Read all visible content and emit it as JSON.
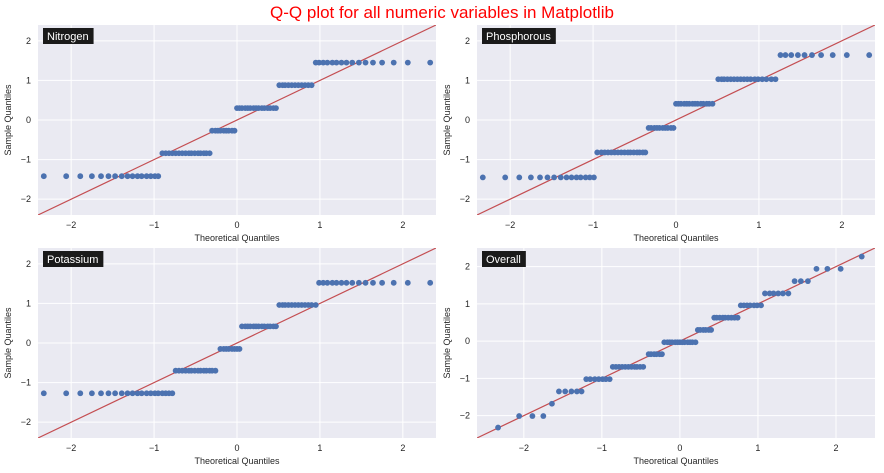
{
  "figure": {
    "title": "Q-Q plot for all numeric variables in Matplotlib",
    "title_color": "#ff0000",
    "background": "#ffffff",
    "axes_facecolor": "#eaeaf2",
    "grid_color": "#ffffff",
    "point_color": "#4c72b0",
    "line_color": "#c44e52",
    "label_box_color": "#1a1a1a",
    "label_text_color": "#ffffff"
  },
  "chart_data": [
    {
      "type": "scatter",
      "title": "Nitrogen",
      "xlabel": "Theoretical Quantiles",
      "ylabel": "Sample Quantiles",
      "xlim": [
        -2.4,
        2.4
      ],
      "ylim": [
        -2.4,
        2.4
      ],
      "xticks": [
        -2,
        -1,
        0,
        1,
        2
      ],
      "yticks": [
        -2,
        -1,
        0,
        1,
        2
      ],
      "grid": true,
      "reference_line": "45-degree",
      "points": [
        [
          -2.33,
          -1.42
        ],
        [
          -2.06,
          -1.42
        ],
        [
          -1.89,
          -1.42
        ],
        [
          -1.75,
          -1.42
        ],
        [
          -1.64,
          -1.42
        ],
        [
          -1.55,
          -1.42
        ],
        [
          -1.47,
          -1.42
        ],
        [
          -1.39,
          -1.42
        ],
        [
          -1.32,
          -1.42
        ],
        [
          -1.26,
          -1.42
        ],
        [
          -1.2,
          -1.42
        ],
        [
          -1.15,
          -1.42
        ],
        [
          -1.09,
          -1.42
        ],
        [
          -1.04,
          -1.42
        ],
        [
          -0.99,
          -1.42
        ],
        [
          -0.95,
          -1.42
        ],
        [
          -0.9,
          -0.84
        ],
        [
          -0.86,
          -0.84
        ],
        [
          -0.82,
          -0.84
        ],
        [
          -0.78,
          -0.84
        ],
        [
          -0.74,
          -0.84
        ],
        [
          -0.7,
          -0.84
        ],
        [
          -0.66,
          -0.84
        ],
        [
          -0.62,
          -0.84
        ],
        [
          -0.58,
          -0.84
        ],
        [
          -0.55,
          -0.84
        ],
        [
          -0.51,
          -0.84
        ],
        [
          -0.47,
          -0.84
        ],
        [
          -0.44,
          -0.84
        ],
        [
          -0.4,
          -0.84
        ],
        [
          -0.37,
          -0.84
        ],
        [
          -0.33,
          -0.84
        ],
        [
          -0.3,
          -0.27
        ],
        [
          -0.26,
          -0.27
        ],
        [
          -0.23,
          -0.27
        ],
        [
          -0.2,
          -0.27
        ],
        [
          -0.16,
          -0.27
        ],
        [
          -0.13,
          -0.27
        ],
        [
          -0.1,
          -0.27
        ],
        [
          -0.06,
          -0.27
        ],
        [
          -0.03,
          -0.27
        ],
        [
          0,
          0.3
        ],
        [
          0.03,
          0.3
        ],
        [
          0.06,
          0.3
        ],
        [
          0.1,
          0.3
        ],
        [
          0.13,
          0.3
        ],
        [
          0.16,
          0.3
        ],
        [
          0.2,
          0.3
        ],
        [
          0.23,
          0.3
        ],
        [
          0.26,
          0.3
        ],
        [
          0.3,
          0.3
        ],
        [
          0.33,
          0.3
        ],
        [
          0.37,
          0.3
        ],
        [
          0.4,
          0.3
        ],
        [
          0.44,
          0.3
        ],
        [
          0.47,
          0.3
        ],
        [
          0.51,
          0.88
        ],
        [
          0.55,
          0.88
        ],
        [
          0.58,
          0.88
        ],
        [
          0.62,
          0.88
        ],
        [
          0.66,
          0.88
        ],
        [
          0.7,
          0.88
        ],
        [
          0.74,
          0.88
        ],
        [
          0.78,
          0.88
        ],
        [
          0.82,
          0.88
        ],
        [
          0.86,
          0.88
        ],
        [
          0.9,
          0.88
        ],
        [
          0.95,
          1.45
        ],
        [
          0.99,
          1.45
        ],
        [
          1.04,
          1.45
        ],
        [
          1.09,
          1.45
        ],
        [
          1.15,
          1.45
        ],
        [
          1.2,
          1.45
        ],
        [
          1.26,
          1.45
        ],
        [
          1.32,
          1.45
        ],
        [
          1.39,
          1.45
        ],
        [
          1.47,
          1.45
        ],
        [
          1.55,
          1.45
        ],
        [
          1.64,
          1.45
        ],
        [
          1.75,
          1.45
        ],
        [
          1.89,
          1.45
        ],
        [
          2.06,
          1.45
        ],
        [
          2.33,
          1.45
        ]
      ]
    },
    {
      "type": "scatter",
      "title": "Phosphorous",
      "xlabel": "Theoretical Quantiles",
      "ylabel": "Sample Quantiles",
      "xlim": [
        -2.4,
        2.4
      ],
      "ylim": [
        -2.4,
        2.4
      ],
      "xticks": [
        -2,
        -1,
        0,
        1,
        2
      ],
      "yticks": [
        -2,
        -1,
        0,
        1,
        2
      ],
      "grid": true,
      "reference_line": "45-degree",
      "points": [
        [
          -2.33,
          -1.45
        ],
        [
          -2.06,
          -1.45
        ],
        [
          -1.89,
          -1.45
        ],
        [
          -1.75,
          -1.45
        ],
        [
          -1.64,
          -1.45
        ],
        [
          -1.55,
          -1.45
        ],
        [
          -1.47,
          -1.45
        ],
        [
          -1.39,
          -1.45
        ],
        [
          -1.32,
          -1.45
        ],
        [
          -1.26,
          -1.45
        ],
        [
          -1.2,
          -1.45
        ],
        [
          -1.15,
          -1.45
        ],
        [
          -1.09,
          -1.45
        ],
        [
          -1.04,
          -1.45
        ],
        [
          -0.99,
          -1.45
        ],
        [
          -0.95,
          -0.82
        ],
        [
          -0.9,
          -0.82
        ],
        [
          -0.86,
          -0.82
        ],
        [
          -0.82,
          -0.82
        ],
        [
          -0.78,
          -0.82
        ],
        [
          -0.74,
          -0.82
        ],
        [
          -0.7,
          -0.82
        ],
        [
          -0.66,
          -0.82
        ],
        [
          -0.62,
          -0.82
        ],
        [
          -0.58,
          -0.82
        ],
        [
          -0.55,
          -0.82
        ],
        [
          -0.51,
          -0.82
        ],
        [
          -0.47,
          -0.82
        ],
        [
          -0.44,
          -0.82
        ],
        [
          -0.4,
          -0.82
        ],
        [
          -0.37,
          -0.82
        ],
        [
          -0.33,
          -0.2
        ],
        [
          -0.3,
          -0.2
        ],
        [
          -0.26,
          -0.2
        ],
        [
          -0.23,
          -0.2
        ],
        [
          -0.2,
          -0.2
        ],
        [
          -0.16,
          -0.2
        ],
        [
          -0.13,
          -0.2
        ],
        [
          -0.1,
          -0.2
        ],
        [
          -0.06,
          -0.2
        ],
        [
          -0.03,
          -0.2
        ],
        [
          0,
          0.41
        ],
        [
          0.03,
          0.41
        ],
        [
          0.06,
          0.41
        ],
        [
          0.1,
          0.41
        ],
        [
          0.13,
          0.41
        ],
        [
          0.16,
          0.41
        ],
        [
          0.2,
          0.41
        ],
        [
          0.23,
          0.41
        ],
        [
          0.26,
          0.41
        ],
        [
          0.3,
          0.41
        ],
        [
          0.33,
          0.41
        ],
        [
          0.37,
          0.41
        ],
        [
          0.4,
          0.41
        ],
        [
          0.44,
          0.41
        ],
        [
          0.51,
          1.03
        ],
        [
          0.55,
          1.03
        ],
        [
          0.58,
          1.03
        ],
        [
          0.62,
          1.03
        ],
        [
          0.66,
          1.03
        ],
        [
          0.7,
          1.03
        ],
        [
          0.74,
          1.03
        ],
        [
          0.78,
          1.03
        ],
        [
          0.82,
          1.03
        ],
        [
          0.86,
          1.03
        ],
        [
          0.9,
          1.03
        ],
        [
          0.95,
          1.03
        ],
        [
          0.99,
          1.03
        ],
        [
          1.04,
          1.03
        ],
        [
          1.09,
          1.03
        ],
        [
          1.15,
          1.03
        ],
        [
          1.2,
          1.03
        ],
        [
          1.26,
          1.64
        ],
        [
          1.32,
          1.64
        ],
        [
          1.39,
          1.64
        ],
        [
          1.47,
          1.64
        ],
        [
          1.55,
          1.64
        ],
        [
          1.64,
          1.64
        ],
        [
          1.75,
          1.64
        ],
        [
          1.89,
          1.64
        ],
        [
          2.06,
          1.64
        ],
        [
          2.33,
          1.64
        ]
      ]
    },
    {
      "type": "scatter",
      "title": "Potassium",
      "xlabel": "Theoretical Quantiles",
      "ylabel": "Sample Quantiles",
      "xlim": [
        -2.4,
        2.4
      ],
      "ylim": [
        -2.4,
        2.4
      ],
      "xticks": [
        -2,
        -1,
        0,
        1,
        2
      ],
      "yticks": [
        -2,
        -1,
        0,
        1,
        2
      ],
      "grid": true,
      "reference_line": "45-degree",
      "points": [
        [
          -2.33,
          -1.27
        ],
        [
          -2.06,
          -1.27
        ],
        [
          -1.89,
          -1.27
        ],
        [
          -1.75,
          -1.27
        ],
        [
          -1.64,
          -1.27
        ],
        [
          -1.55,
          -1.27
        ],
        [
          -1.47,
          -1.27
        ],
        [
          -1.39,
          -1.27
        ],
        [
          -1.32,
          -1.27
        ],
        [
          -1.26,
          -1.27
        ],
        [
          -1.2,
          -1.27
        ],
        [
          -1.15,
          -1.27
        ],
        [
          -1.09,
          -1.27
        ],
        [
          -1.04,
          -1.27
        ],
        [
          -0.99,
          -1.27
        ],
        [
          -0.95,
          -1.27
        ],
        [
          -0.9,
          -1.27
        ],
        [
          -0.86,
          -1.27
        ],
        [
          -0.82,
          -1.27
        ],
        [
          -0.78,
          -1.27
        ],
        [
          -0.74,
          -0.7
        ],
        [
          -0.7,
          -0.7
        ],
        [
          -0.66,
          -0.7
        ],
        [
          -0.62,
          -0.7
        ],
        [
          -0.58,
          -0.7
        ],
        [
          -0.55,
          -0.7
        ],
        [
          -0.51,
          -0.7
        ],
        [
          -0.47,
          -0.7
        ],
        [
          -0.44,
          -0.7
        ],
        [
          -0.4,
          -0.7
        ],
        [
          -0.37,
          -0.7
        ],
        [
          -0.33,
          -0.7
        ],
        [
          -0.3,
          -0.7
        ],
        [
          -0.26,
          -0.7
        ],
        [
          -0.2,
          -0.15
        ],
        [
          -0.16,
          -0.15
        ],
        [
          -0.13,
          -0.15
        ],
        [
          -0.1,
          -0.15
        ],
        [
          -0.06,
          -0.15
        ],
        [
          -0.03,
          -0.15
        ],
        [
          0,
          -0.15
        ],
        [
          0.03,
          -0.15
        ],
        [
          0.06,
          0.42
        ],
        [
          0.1,
          0.42
        ],
        [
          0.13,
          0.42
        ],
        [
          0.16,
          0.42
        ],
        [
          0.2,
          0.42
        ],
        [
          0.23,
          0.42
        ],
        [
          0.26,
          0.42
        ],
        [
          0.3,
          0.42
        ],
        [
          0.33,
          0.42
        ],
        [
          0.37,
          0.42
        ],
        [
          0.4,
          0.42
        ],
        [
          0.44,
          0.42
        ],
        [
          0.47,
          0.42
        ],
        [
          0.51,
          0.96
        ],
        [
          0.55,
          0.96
        ],
        [
          0.58,
          0.96
        ],
        [
          0.62,
          0.96
        ],
        [
          0.66,
          0.96
        ],
        [
          0.7,
          0.96
        ],
        [
          0.74,
          0.96
        ],
        [
          0.78,
          0.96
        ],
        [
          0.82,
          0.96
        ],
        [
          0.86,
          0.96
        ],
        [
          0.9,
          0.96
        ],
        [
          0.95,
          0.96
        ],
        [
          0.99,
          1.52
        ],
        [
          1.04,
          1.52
        ],
        [
          1.09,
          1.52
        ],
        [
          1.15,
          1.52
        ],
        [
          1.2,
          1.52
        ],
        [
          1.26,
          1.52
        ],
        [
          1.32,
          1.52
        ],
        [
          1.39,
          1.52
        ],
        [
          1.47,
          1.52
        ],
        [
          1.55,
          1.52
        ],
        [
          1.64,
          1.52
        ],
        [
          1.75,
          1.52
        ],
        [
          1.89,
          1.52
        ],
        [
          2.06,
          1.52
        ],
        [
          2.33,
          1.52
        ]
      ]
    },
    {
      "type": "scatter",
      "title": "Overall",
      "xlabel": "Theoretical Quantiles",
      "ylabel": "Sample Quantiles",
      "xlim": [
        -2.6,
        2.5
      ],
      "ylim": [
        -2.6,
        2.5
      ],
      "xticks": [
        -2,
        -1,
        0,
        1,
        2
      ],
      "yticks": [
        -2,
        -1,
        0,
        1,
        2
      ],
      "grid": true,
      "reference_line": "45-degree",
      "points": [
        [
          -2.33,
          -2.32
        ],
        [
          -2.06,
          -2.01
        ],
        [
          -1.89,
          -2.01
        ],
        [
          -1.75,
          -2.01
        ],
        [
          -1.64,
          -1.68
        ],
        [
          -1.55,
          -1.35
        ],
        [
          -1.47,
          -1.35
        ],
        [
          -1.39,
          -1.35
        ],
        [
          -1.32,
          -1.35
        ],
        [
          -1.26,
          -1.35
        ],
        [
          -1.2,
          -1.02
        ],
        [
          -1.15,
          -1.02
        ],
        [
          -1.09,
          -1.02
        ],
        [
          -1.04,
          -1.02
        ],
        [
          -0.99,
          -1.02
        ],
        [
          -0.95,
          -1.02
        ],
        [
          -0.9,
          -1.02
        ],
        [
          -0.86,
          -0.69
        ],
        [
          -0.82,
          -0.69
        ],
        [
          -0.78,
          -0.69
        ],
        [
          -0.74,
          -0.69
        ],
        [
          -0.7,
          -0.69
        ],
        [
          -0.66,
          -0.69
        ],
        [
          -0.62,
          -0.69
        ],
        [
          -0.58,
          -0.69
        ],
        [
          -0.55,
          -0.69
        ],
        [
          -0.51,
          -0.69
        ],
        [
          -0.47,
          -0.69
        ],
        [
          -0.4,
          -0.35
        ],
        [
          -0.37,
          -0.35
        ],
        [
          -0.33,
          -0.35
        ],
        [
          -0.3,
          -0.35
        ],
        [
          -0.26,
          -0.35
        ],
        [
          -0.23,
          -0.35
        ],
        [
          -0.2,
          -0.03
        ],
        [
          -0.16,
          -0.03
        ],
        [
          -0.13,
          -0.03
        ],
        [
          -0.1,
          -0.03
        ],
        [
          -0.06,
          -0.03
        ],
        [
          -0.03,
          -0.03
        ],
        [
          0,
          -0.03
        ],
        [
          0.03,
          -0.03
        ],
        [
          0.06,
          -0.03
        ],
        [
          0.1,
          -0.03
        ],
        [
          0.13,
          -0.03
        ],
        [
          0.16,
          -0.03
        ],
        [
          0.2,
          -0.03
        ],
        [
          0.23,
          0.3
        ],
        [
          0.26,
          0.3
        ],
        [
          0.3,
          0.3
        ],
        [
          0.33,
          0.3
        ],
        [
          0.37,
          0.3
        ],
        [
          0.4,
          0.3
        ],
        [
          0.44,
          0.63
        ],
        [
          0.47,
          0.63
        ],
        [
          0.51,
          0.63
        ],
        [
          0.55,
          0.63
        ],
        [
          0.58,
          0.63
        ],
        [
          0.62,
          0.63
        ],
        [
          0.66,
          0.63
        ],
        [
          0.7,
          0.63
        ],
        [
          0.74,
          0.63
        ],
        [
          0.78,
          0.96
        ],
        [
          0.82,
          0.96
        ],
        [
          0.86,
          0.96
        ],
        [
          0.9,
          0.96
        ],
        [
          0.95,
          0.96
        ],
        [
          0.99,
          0.96
        ],
        [
          1.04,
          0.96
        ],
        [
          1.09,
          1.28
        ],
        [
          1.15,
          1.28
        ],
        [
          1.2,
          1.28
        ],
        [
          1.26,
          1.28
        ],
        [
          1.32,
          1.28
        ],
        [
          1.39,
          1.28
        ],
        [
          1.47,
          1.61
        ],
        [
          1.55,
          1.61
        ],
        [
          1.64,
          1.61
        ],
        [
          1.75,
          1.94
        ],
        [
          1.89,
          1.94
        ],
        [
          2.06,
          1.94
        ],
        [
          2.33,
          2.27
        ]
      ]
    }
  ]
}
